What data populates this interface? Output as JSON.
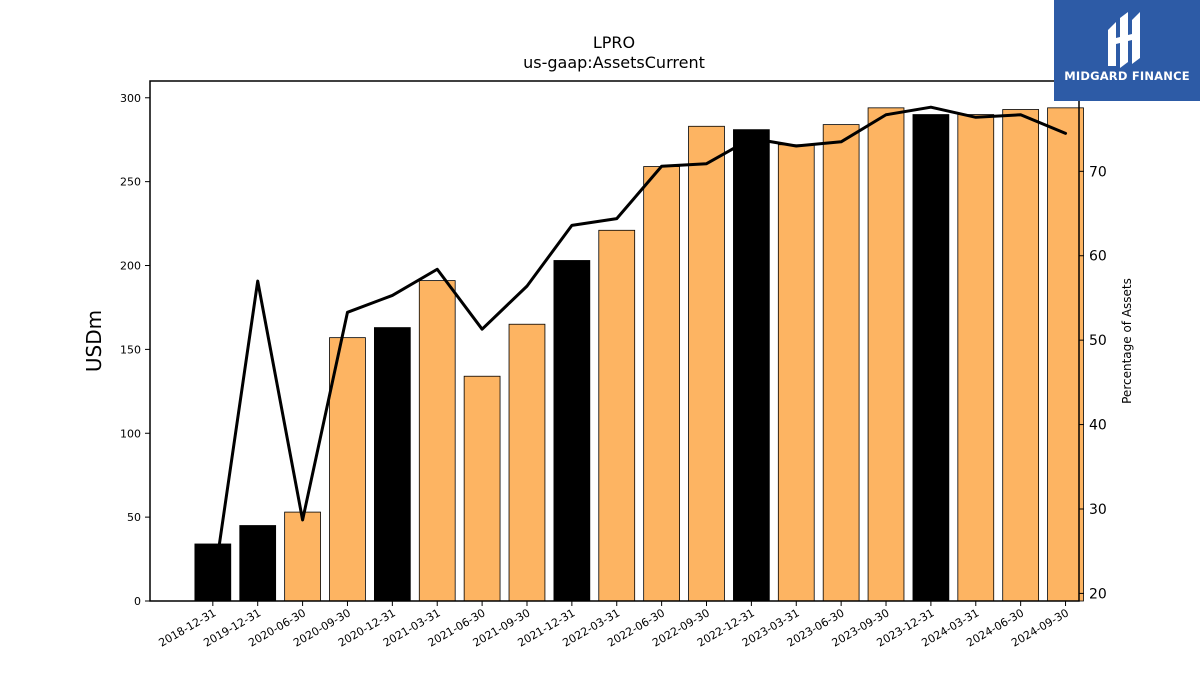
{
  "brand": {
    "name": "MIDGARD FINANCE",
    "background": "#2d5ba6"
  },
  "chart_data": {
    "type": "bar",
    "title": "LPRO",
    "subtitle": "us-gaap:AssetsCurrent",
    "ylabel": "USDm",
    "y2label": "Percentage of Assets",
    "ylim": [
      0,
      310
    ],
    "y2lim": [
      19.1,
      80.7
    ],
    "yticks": [
      0,
      50,
      100,
      150,
      200,
      250,
      300
    ],
    "y2ticks": [
      20,
      30,
      40,
      50,
      60,
      70
    ],
    "grid": false,
    "categories": [
      "2018-12-31",
      "2019-12-31",
      "2020-06-30",
      "2020-09-30",
      "2020-12-31",
      "2021-03-31",
      "2021-06-30",
      "2021-09-30",
      "2021-12-31",
      "2022-03-31",
      "2022-06-30",
      "2022-09-30",
      "2022-12-31",
      "2023-03-31",
      "2023-06-30",
      "2023-09-30",
      "2023-12-31",
      "2024-03-31",
      "2024-06-30",
      "2024-09-30"
    ],
    "series": [
      {
        "type": "bar",
        "axis": "left",
        "values": [
          34,
          45,
          53,
          157,
          163,
          191,
          134,
          165,
          203,
          221,
          259,
          283,
          281,
          272,
          284,
          294,
          290,
          290,
          293,
          294
        ],
        "colors": [
          "#000000",
          "#000000",
          "#fdb462",
          "#fdb462",
          "#000000",
          "#fdb462",
          "#fdb462",
          "#fdb462",
          "#000000",
          "#fdb462",
          "#fdb462",
          "#fdb462",
          "#000000",
          "#fdb462",
          "#fdb462",
          "#fdb462",
          "#000000",
          "#fdb462",
          "#fdb462",
          "#fdb462"
        ]
      },
      {
        "type": "line",
        "axis": "right",
        "color": "#000000",
        "values": [
          20.5,
          57.0,
          28.7,
          53.3,
          55.3,
          58.4,
          51.3,
          56.4,
          63.6,
          64.4,
          70.6,
          70.9,
          73.9,
          73.0,
          73.5,
          76.7,
          77.6,
          76.4,
          76.7,
          74.5
        ]
      }
    ]
  }
}
